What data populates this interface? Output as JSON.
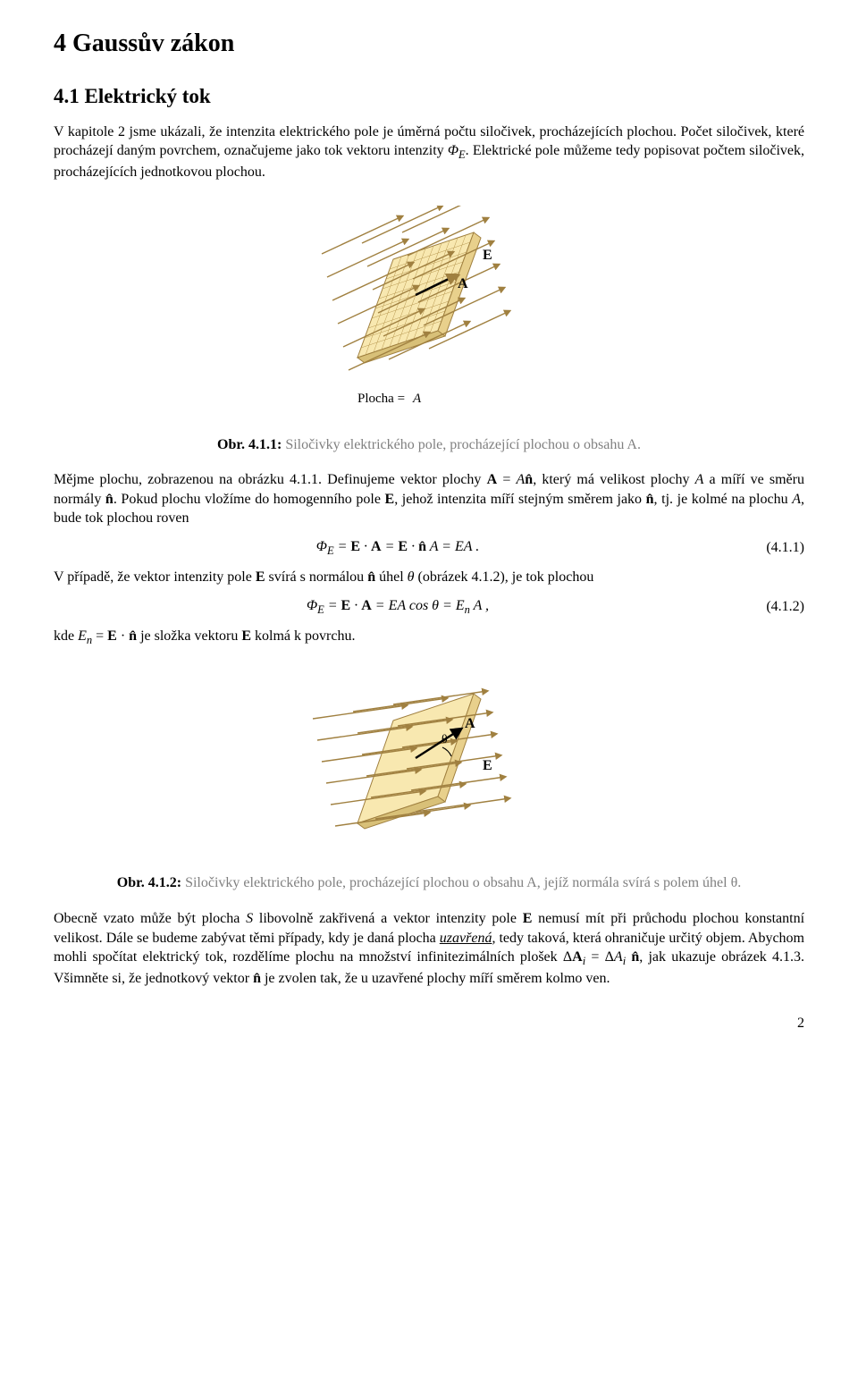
{
  "title": "4   Gaussův zákon",
  "section": "4.1   Elektrický tok",
  "para1": "V kapitole 2 jsme ukázali, že intenzita elektrického pole je úměrná počtu siločivek, procházejících plochou. Počet siločivek, které procházejí daným povrchem, označujeme jako tok vektoru intenzity ",
  "para1b": ". Elektrické pole můžeme tedy popisovat počtem siločivek, procházejících jednotkovou plochou.",
  "phi_E": "Φ",
  "sub_E": "E",
  "fig1": {
    "label_A": "A",
    "label_E": "E",
    "label_plocha": "Plocha = ",
    "stroke": "#a08040",
    "face1": "#f8e8b0",
    "face2": "#e8d08c",
    "face3": "#d8c078",
    "grid": "#b89850",
    "arrow": "#a08040",
    "text": "#000000",
    "n_arrows": 6
  },
  "cap1_label": "Obr. 4.1.1: ",
  "cap1_text": "Siločivky elektrického pole, procházející plochou o obsahu A.",
  "para2a": "Mějme plochu, zobrazenou na obrázku 4.1.1. Definujeme vektor plochy ",
  "para2b": ", který má velikost plochy ",
  "para2c": " a míří ve směru normály ",
  "para2d": ". Pokud plochu vložíme do homogenního pole ",
  "para2e": ", jehož intenzita míří stejným směrem jako ",
  "para2f": ", tj. je kolmé na plochu ",
  "para2g": ", bude tok plochou roven",
  "A_eq_An": "A = A n̂",
  "A_ital": "A",
  "nhat": "n̂",
  "Ebold": "E",
  "eq1": "Φ_E = E · A = E · n̂ A = EA .",
  "eq1num": "(4.1.1)",
  "para3a": "V případě, že vektor intenzity pole ",
  "para3b": " svírá s normálou ",
  "para3c": " úhel ",
  "para3d": " (obrázek 4.1.2), je tok plochou",
  "theta": "θ",
  "eq2": "Φ_E = E · A = EA cos θ = E_n A ,",
  "eq2num": "(4.1.2)",
  "para4a": "kde ",
  "para4b": " je složka vektoru ",
  "para4c": " kolmá k povrchu.",
  "En_eq": "E_n = E · n̂",
  "fig2": {
    "label_A": "A",
    "label_E": "E",
    "label_theta": "θ",
    "stroke": "#a08040",
    "face1": "#f8e8b0",
    "face2": "#e8d08c",
    "face3": "#d8c078",
    "arrow": "#a08040",
    "text": "#000000",
    "n_arrows": 6
  },
  "cap2_label": "Obr. 4.1.2: ",
  "cap2_text": "Siločivky elektrického pole, procházející plochou o obsahu A, jejíž normála svírá s polem úhel θ.",
  "para5a": "Obecně vzato může být plocha ",
  "S_ital": "S",
  "para5b": " libovolně zakřivená a vektor intenzity pole ",
  "para5c": " nemusí mít při průchodu plochou konstantní velikost. Dále se budeme zabývat těmi případy, kdy je daná plocha ",
  "closed": "uzavřená",
  "para5d": ", tedy taková, která ohraničuje určitý objem. Abychom mohli spočítat elektrický tok, rozdělíme plochu na množství infinitezimálních plošek ",
  "dA_eq": "ΔA_i = ΔA_i n̂",
  "para5e": ", jak ukazuje obrázek 4.1.3. Všimněte si, že jednotkový vektor ",
  "para5f": " je zvolen tak, že u uzavřené plochy míří směrem kolmo ven.",
  "pagenum": "2"
}
